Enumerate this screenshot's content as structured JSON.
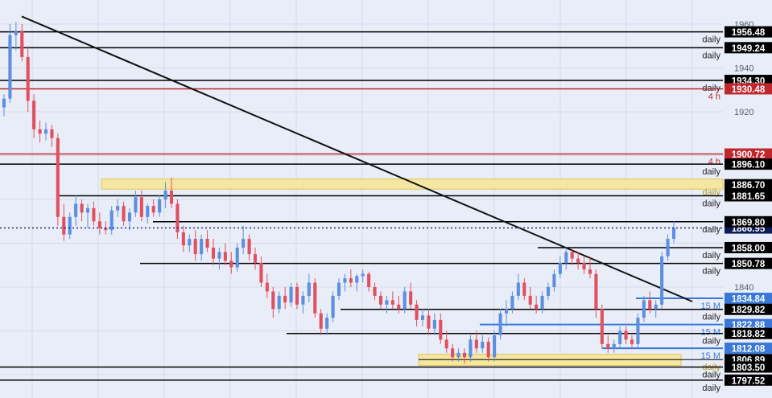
{
  "chart_data": {
    "type": "candlestick",
    "title": "",
    "xlabel": "",
    "ylabel": "",
    "ylim": [
      1795,
      1962
    ],
    "grid": true,
    "axis_ticks": [
      1960,
      1940,
      1920,
      1840
    ],
    "current_price": "1866.95",
    "current_price_value": 1866.95,
    "colors": {
      "background": "#e9edf8",
      "up": "#5b8fe0",
      "down": "#e0505e",
      "level_line": "#000000",
      "red_level": "#c0272d",
      "blue_level": "#3a78d8",
      "zone_fill": "#f5e6a2",
      "zone_border": "#e1c65a"
    },
    "levels": [
      {
        "value": 1956.48,
        "label": "1956.48",
        "timeframe": "daily",
        "color": "black"
      },
      {
        "value": 1949.24,
        "label": "1949.24",
        "timeframe": "daily",
        "color": "black"
      },
      {
        "value": 1934.3,
        "label": "1934.30",
        "timeframe": "daily",
        "color": "black"
      },
      {
        "value": 1930.48,
        "label": "1930.48",
        "timeframe": "4 h",
        "color": "red"
      },
      {
        "value": 1900.72,
        "label": "1900.72",
        "timeframe": "4 h",
        "color": "red"
      },
      {
        "value": 1896.1,
        "label": "1896.10",
        "timeframe": "daily",
        "color": "black"
      },
      {
        "value": 1886.7,
        "label": "1886.70",
        "timeframe": "daily",
        "color": "zone"
      },
      {
        "value": 1881.65,
        "label": "1881.65",
        "timeframe": "daily",
        "color": "black"
      },
      {
        "value": 1869.8,
        "label": "1869.80",
        "timeframe": "daily",
        "color": "black"
      },
      {
        "value": 1858.0,
        "label": "1858.00",
        "timeframe": "daily",
        "color": "black"
      },
      {
        "value": 1850.78,
        "label": "1850.78",
        "timeframe": "daily",
        "color": "black"
      },
      {
        "value": 1834.84,
        "label": "1834.84",
        "timeframe": "15 M",
        "color": "blue"
      },
      {
        "value": 1829.82,
        "label": "1829.82",
        "timeframe": "daily",
        "color": "black"
      },
      {
        "value": 1822.88,
        "label": "1822.88",
        "timeframe": "15 M",
        "color": "blue"
      },
      {
        "value": 1818.82,
        "label": "1818.82",
        "timeframe": "daily",
        "color": "black"
      },
      {
        "value": 1812.08,
        "label": "1812.08",
        "timeframe": "15 M",
        "color": "blue"
      },
      {
        "value": 1806.89,
        "label": "1806.89",
        "timeframe": "daily",
        "color": "zone"
      },
      {
        "value": 1803.5,
        "label": "1803.50",
        "timeframe": "daily",
        "color": "black"
      },
      {
        "value": 1797.52,
        "label": "1797.52",
        "timeframe": "daily",
        "color": "black"
      }
    ],
    "zones": [
      {
        "from": 1884.7,
        "to": 1889.3
      },
      {
        "from": 1804.2,
        "to": 1809.3
      }
    ],
    "trendline": {
      "from": [
        0,
        1963.5
      ],
      "to": [
        270,
        1833.4
      ]
    },
    "candles": [
      [
        1922,
        1928,
        1918,
        1926
      ],
      [
        1926,
        1960,
        1924,
        1955
      ],
      [
        1955,
        1961,
        1948,
        1957
      ],
      [
        1957,
        1960,
        1943,
        1945
      ],
      [
        1945,
        1950,
        1920,
        1925
      ],
      [
        1925,
        1928,
        1908,
        1912
      ],
      [
        1912,
        1916,
        1906,
        1910
      ],
      [
        1910,
        1915,
        1907,
        1912
      ],
      [
        1912,
        1914,
        1904,
        1908
      ],
      [
        1908,
        1910,
        1868,
        1872
      ],
      [
        1872,
        1878,
        1861,
        1864
      ],
      [
        1864,
        1874,
        1862,
        1872
      ],
      [
        1872,
        1882,
        1868,
        1878
      ],
      [
        1878,
        1880,
        1870,
        1874
      ],
      [
        1874,
        1878,
        1867,
        1876
      ],
      [
        1876,
        1879,
        1868,
        1870
      ],
      [
        1870,
        1874,
        1864,
        1867
      ],
      [
        1867,
        1870,
        1864,
        1866
      ],
      [
        1866,
        1877,
        1864,
        1875
      ],
      [
        1875,
        1880,
        1872,
        1877
      ],
      [
        1877,
        1879,
        1868,
        1870
      ],
      [
        1870,
        1876,
        1866,
        1874
      ],
      [
        1874,
        1884,
        1872,
        1881
      ],
      [
        1881,
        1884,
        1870,
        1872
      ],
      [
        1872,
        1878,
        1869,
        1877
      ],
      [
        1877,
        1880,
        1872,
        1874
      ],
      [
        1874,
        1882,
        1872,
        1880
      ],
      [
        1880,
        1888,
        1876,
        1884
      ],
      [
        1884,
        1890,
        1876,
        1878
      ],
      [
        1878,
        1880,
        1862,
        1865
      ],
      [
        1865,
        1868,
        1856,
        1859
      ],
      [
        1859,
        1864,
        1856,
        1862
      ],
      [
        1862,
        1866,
        1852,
        1855
      ],
      [
        1855,
        1864,
        1852,
        1862
      ],
      [
        1862,
        1866,
        1856,
        1858
      ],
      [
        1858,
        1862,
        1850,
        1853
      ],
      [
        1853,
        1858,
        1848,
        1856
      ],
      [
        1856,
        1860,
        1850,
        1852
      ],
      [
        1852,
        1856,
        1846,
        1849
      ],
      [
        1849,
        1860,
        1847,
        1858
      ],
      [
        1858,
        1868,
        1855,
        1862
      ],
      [
        1862,
        1864,
        1852,
        1855
      ],
      [
        1855,
        1858,
        1848,
        1851
      ],
      [
        1851,
        1854,
        1840,
        1842
      ],
      [
        1842,
        1846,
        1835,
        1838
      ],
      [
        1838,
        1840,
        1826,
        1830
      ],
      [
        1830,
        1838,
        1828,
        1836
      ],
      [
        1836,
        1840,
        1830,
        1833
      ],
      [
        1833,
        1842,
        1831,
        1840
      ],
      [
        1840,
        1842,
        1830,
        1832
      ],
      [
        1832,
        1838,
        1828,
        1836
      ],
      [
        1836,
        1846,
        1833,
        1842
      ],
      [
        1842,
        1844,
        1826,
        1828
      ],
      [
        1828,
        1830,
        1818,
        1821
      ],
      [
        1821,
        1828,
        1818,
        1826
      ],
      [
        1826,
        1838,
        1824,
        1836
      ],
      [
        1836,
        1844,
        1834,
        1842
      ],
      [
        1842,
        1846,
        1838,
        1844
      ],
      [
        1844,
        1848,
        1840,
        1842
      ],
      [
        1842,
        1846,
        1838,
        1845
      ],
      [
        1845,
        1848,
        1842,
        1846
      ],
      [
        1846,
        1847,
        1838,
        1840
      ],
      [
        1840,
        1842,
        1834,
        1836
      ],
      [
        1836,
        1838,
        1830,
        1832
      ],
      [
        1832,
        1836,
        1828,
        1834
      ],
      [
        1834,
        1838,
        1830,
        1832
      ],
      [
        1832,
        1836,
        1828,
        1830
      ],
      [
        1830,
        1840,
        1828,
        1838
      ],
      [
        1838,
        1842,
        1830,
        1832
      ],
      [
        1832,
        1834,
        1822,
        1825
      ],
      [
        1825,
        1830,
        1822,
        1827
      ],
      [
        1827,
        1830,
        1818,
        1821
      ],
      [
        1821,
        1828,
        1818,
        1825
      ],
      [
        1825,
        1828,
        1814,
        1816
      ],
      [
        1816,
        1820,
        1810,
        1812
      ],
      [
        1812,
        1814,
        1806,
        1808
      ],
      [
        1808,
        1812,
        1806,
        1810
      ],
      [
        1810,
        1812,
        1805,
        1808
      ],
      [
        1808,
        1818,
        1806,
        1816
      ],
      [
        1816,
        1820,
        1810,
        1812
      ],
      [
        1812,
        1818,
        1810,
        1815
      ],
      [
        1815,
        1817,
        1806,
        1808
      ],
      [
        1808,
        1820,
        1806,
        1818
      ],
      [
        1818,
        1830,
        1816,
        1828
      ],
      [
        1828,
        1834,
        1822,
        1830
      ],
      [
        1830,
        1838,
        1828,
        1836
      ],
      [
        1836,
        1846,
        1834,
        1842
      ],
      [
        1842,
        1844,
        1834,
        1836
      ],
      [
        1836,
        1840,
        1830,
        1832
      ],
      [
        1832,
        1836,
        1828,
        1830
      ],
      [
        1830,
        1838,
        1828,
        1836
      ],
      [
        1836,
        1842,
        1834,
        1840
      ],
      [
        1840,
        1848,
        1838,
        1846
      ],
      [
        1846,
        1854,
        1844,
        1851
      ],
      [
        1851,
        1858,
        1848,
        1856
      ],
      [
        1856,
        1858,
        1850,
        1853
      ],
      [
        1853,
        1856,
        1848,
        1851
      ],
      [
        1851,
        1854,
        1846,
        1848
      ],
      [
        1848,
        1854,
        1844,
        1846
      ],
      [
        1846,
        1848,
        1826,
        1830
      ],
      [
        1830,
        1832,
        1812,
        1814
      ],
      [
        1814,
        1818,
        1810,
        1812
      ],
      [
        1812,
        1816,
        1810,
        1814
      ],
      [
        1814,
        1822,
        1812,
        1820
      ],
      [
        1820,
        1822,
        1814,
        1816
      ],
      [
        1816,
        1818,
        1812,
        1814
      ],
      [
        1814,
        1828,
        1812,
        1826
      ],
      [
        1826,
        1836,
        1824,
        1834
      ],
      [
        1834,
        1838,
        1828,
        1830
      ],
      [
        1830,
        1834,
        1826,
        1832
      ],
      [
        1832,
        1856,
        1830,
        1854
      ],
      [
        1854,
        1864,
        1852,
        1862
      ],
      [
        1862,
        1870,
        1860,
        1867
      ]
    ]
  }
}
